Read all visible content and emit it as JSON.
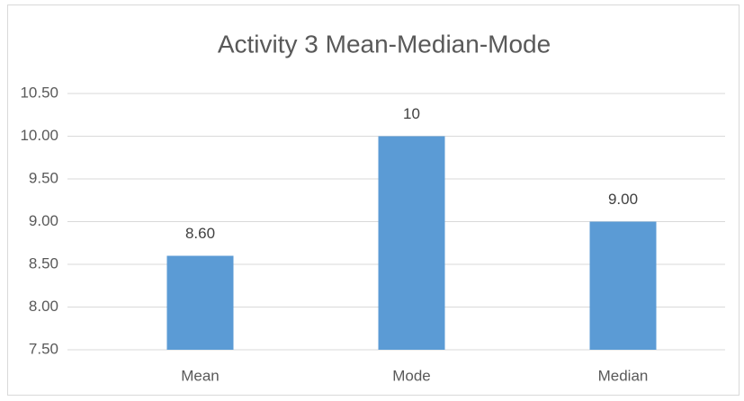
{
  "chart_data": {
    "type": "bar",
    "title": "Activity 3 Mean-Median-Mode",
    "categories": [
      "Mean",
      "Mode",
      "Median"
    ],
    "values": [
      8.6,
      10,
      9
    ],
    "value_labels": [
      "8.60",
      "10",
      "9.00"
    ],
    "color": "#5b9bd5",
    "ylim": [
      7.5,
      10.5
    ],
    "yticks": [
      {
        "value": 7.5,
        "label": "7.50"
      },
      {
        "value": 8,
        "label": "8.00"
      },
      {
        "value": 8.5,
        "label": "8.50"
      },
      {
        "value": 9,
        "label": "9.00"
      },
      {
        "value": 9.5,
        "label": "9.50"
      },
      {
        "value": 10,
        "label": "10.00"
      },
      {
        "value": 10.5,
        "label": "10.50"
      }
    ],
    "grid": true
  }
}
